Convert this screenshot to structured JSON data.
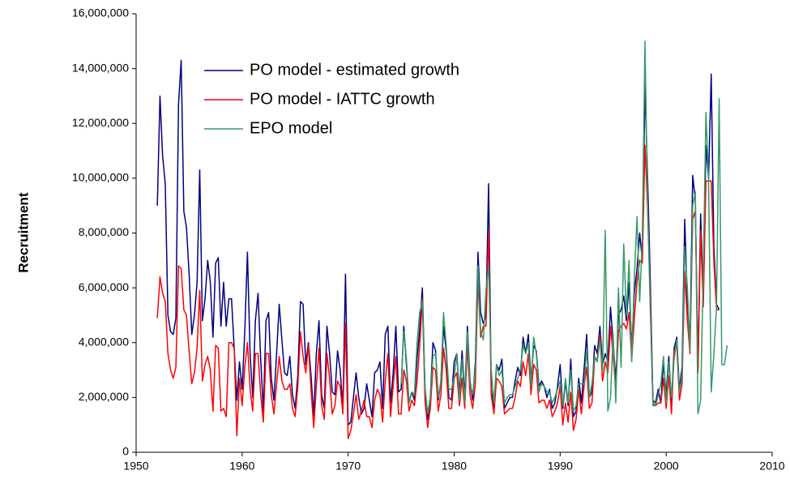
{
  "chart_data": {
    "type": "line",
    "y_label": "Recruitment",
    "legend": "upper left",
    "grid": false,
    "xlim": [
      1950,
      2010
    ],
    "xticks": [
      1950,
      1960,
      1970,
      1980,
      1990,
      2000,
      2010
    ],
    "ylim": [
      0,
      16000000
    ],
    "yticks": [
      0,
      {
        "value": 2000000,
        "label": "2,000,000"
      },
      {
        "value": 4000000,
        "label": "4,000,000"
      },
      {
        "value": 6000000,
        "label": "6,000,000"
      },
      {
        "value": 8000000,
        "label": "8,000,000"
      },
      {
        "value": 10000000,
        "label": "10,000,000"
      },
      {
        "value": 12000000,
        "label": "12,000,000"
      },
      {
        "value": 14000000,
        "label": "14,000,000"
      },
      {
        "value": 16000000,
        "label": "16,000,000"
      }
    ],
    "x": [
      1952,
      1952.25,
      1952.5,
      1952.75,
      1953,
      1953.25,
      1953.5,
      1953.75,
      1954,
      1954.25,
      1954.5,
      1954.75,
      1955,
      1955.25,
      1955.5,
      1955.75,
      1956,
      1956.25,
      1956.5,
      1956.75,
      1957,
      1957.25,
      1957.5,
      1957.75,
      1958,
      1958.25,
      1958.5,
      1958.75,
      1959,
      1959.25,
      1959.5,
      1959.75,
      1960,
      1960.25,
      1960.5,
      1960.75,
      1961,
      1961.25,
      1961.5,
      1961.75,
      1962,
      1962.25,
      1962.5,
      1962.75,
      1963,
      1963.25,
      1963.5,
      1963.75,
      1964,
      1964.25,
      1964.5,
      1964.75,
      1965,
      1965.25,
      1965.5,
      1965.75,
      1966,
      1966.25,
      1966.5,
      1966.75,
      1967,
      1967.25,
      1967.5,
      1967.75,
      1968,
      1968.25,
      1968.5,
      1968.75,
      1969,
      1969.25,
      1969.5,
      1969.75,
      1970,
      1970.25,
      1970.5,
      1970.75,
      1971,
      1971.25,
      1971.5,
      1971.75,
      1972,
      1972.25,
      1972.5,
      1972.75,
      1973,
      1973.25,
      1973.5,
      1973.75,
      1974,
      1974.25,
      1974.5,
      1974.75,
      1975,
      1975.25,
      1975.5,
      1975.75,
      1976,
      1976.25,
      1976.5,
      1976.75,
      1977,
      1977.25,
      1977.5,
      1977.75,
      1978,
      1978.25,
      1978.5,
      1978.75,
      1979,
      1979.25,
      1979.5,
      1979.75,
      1980,
      1980.25,
      1980.5,
      1980.75,
      1981,
      1981.25,
      1981.5,
      1981.75,
      1982,
      1982.25,
      1982.5,
      1982.75,
      1983,
      1983.25,
      1983.5,
      1983.75,
      1984,
      1984.25,
      1984.5,
      1984.75,
      1985,
      1985.25,
      1985.5,
      1985.75,
      1986,
      1986.25,
      1986.5,
      1986.75,
      1987,
      1987.25,
      1987.5,
      1987.75,
      1988,
      1988.25,
      1988.5,
      1988.75,
      1989,
      1989.25,
      1989.5,
      1989.75,
      1990,
      1990.25,
      1990.5,
      1990.75,
      1991,
      1991.25,
      1991.5,
      1991.75,
      1992,
      1992.25,
      1992.5,
      1992.75,
      1993,
      1993.25,
      1993.5,
      1993.75,
      1994,
      1994.25,
      1994.5,
      1994.75,
      1995,
      1995.25,
      1995.5,
      1995.75,
      1996,
      1996.25,
      1996.5,
      1996.75,
      1997,
      1997.25,
      1997.5,
      1997.75,
      1998,
      1998.25,
      1998.5,
      1998.75,
      1999,
      1999.25,
      1999.5,
      1999.75,
      2000,
      2000.25,
      2000.5,
      2000.75,
      2001,
      2001.25,
      2001.5,
      2001.75,
      2002,
      2002.25,
      2002.5,
      2002.75,
      2003,
      2003.25,
      2003.5,
      2003.75,
      2004,
      2004.25,
      2004.5,
      2004.75,
      2005,
      2005.25,
      2005.5,
      2005.75
    ],
    "series": [
      {
        "name": "PO model - estimated growth",
        "color": "#000080",
        "values": [
          9000000.0,
          13000000.0,
          10800000.0,
          9800000.0,
          5000000.0,
          4400000.0,
          4300000.0,
          4900000.0,
          12700000.0,
          14300000.0,
          8800000.0,
          8200000.0,
          6500000.0,
          4300000.0,
          5000000.0,
          6200000.0,
          10300000.0,
          4800000.0,
          5600000.0,
          7000000.0,
          6200000.0,
          4200000.0,
          6900000.0,
          7100000.0,
          4600000.0,
          6200000.0,
          4600000.0,
          5600000.0,
          5600000.0,
          3800000.0,
          1900000.0,
          3300000.0,
          2300000.0,
          4400000.0,
          7300000.0,
          3600000.0,
          2000000.0,
          4800000.0,
          5800000.0,
          3400000.0,
          1500000.0,
          4800000.0,
          5100000.0,
          2700000.0,
          1900000.0,
          3600000.0,
          5400000.0,
          4100000.0,
          2900000.0,
          2800000.0,
          3500000.0,
          2100000.0,
          1600000.0,
          2800000.0,
          5500000.0,
          5400000.0,
          3200000.0,
          4000000.0,
          2800000.0,
          1300000.0,
          3600000.0,
          4800000.0,
          2100000.0,
          1600000.0,
          4600000.0,
          3600000.0,
          2200000.0,
          2100000.0,
          3700000.0,
          3000000.0,
          1600000.0,
          6500000.0,
          1000000.0,
          1100000.0,
          2000000.0,
          2900000.0,
          2000000.0,
          1400000.0,
          1600000.0,
          2500000.0,
          1900000.0,
          1300000.0,
          2900000.0,
          3000000.0,
          3300000.0,
          1600000.0,
          4300000.0,
          4600000.0,
          1800000.0,
          2900000.0,
          4600000.0,
          2200000.0,
          2300000.0,
          4600000.0,
          3200000.0,
          1800000.0,
          2200000.0,
          1900000.0,
          3400000.0,
          4500000.0,
          6000000.0,
          2300000.0,
          1200000.0,
          2000000.0,
          4000000.0,
          3700000.0,
          1900000.0,
          2600000.0,
          4600000.0,
          3700000.0,
          2000000.0,
          1900000.0,
          3300000.0,
          3600000.0,
          2100000.0,
          3700000.0,
          2000000.0,
          4600000.0,
          2600000.0,
          1900000.0,
          3300000.0,
          7300000.0,
          5100000.0,
          4700000.0,
          5000000.0,
          9800000.0,
          2300000.0,
          1500000.0,
          3200000.0,
          3000000.0,
          3400000.0,
          1600000.0,
          1800000.0,
          2000000.0,
          2000000.0,
          2600000.0,
          3100000.0,
          2800000.0,
          4200000.0,
          3600000.0,
          4300000.0,
          2600000.0,
          3900000.0,
          3700000.0,
          2400000.0,
          2600000.0,
          2400000.0,
          2000000.0,
          2300000.0,
          1600000.0,
          1800000.0,
          2400000.0,
          3200000.0,
          1600000.0,
          2600000.0,
          1700000.0,
          3400000.0,
          1300000.0,
          1500000.0,
          2700000.0,
          1800000.0,
          3000000.0,
          4300000.0,
          2000000.0,
          2200000.0,
          3900000.0,
          3600000.0,
          4600000.0,
          3200000.0,
          3600000.0,
          3300000.0,
          5300000.0,
          4000000.0,
          2600000.0,
          5000000.0,
          5200000.0,
          5700000.0,
          4800000.0,
          6200000.0,
          3800000.0,
          5800000.0,
          6700000.0,
          8000000.0,
          7000000.0,
          13400000.0,
          10000000.0,
          6300000.0,
          1900000.0,
          1800000.0,
          2300000.0,
          1800000.0,
          3300000.0,
          2100000.0,
          3500000.0,
          1800000.0,
          3800000.0,
          4200000.0,
          2300000.0,
          3100000.0,
          8500000.0,
          5500000.0,
          4000000.0,
          10100000.0,
          9200000.0,
          3000000.0,
          8700000.0,
          5600000.0,
          11200000.0,
          10000000.0,
          13800000.0,
          7500000.0,
          5400000.0,
          5200000.0,
          null,
          null,
          null
        ]
      },
      {
        "name": "PO model - IATTC growth",
        "color": "#ff0000",
        "values": [
          4900000.0,
          6400000.0,
          5800000.0,
          5500000.0,
          3600000.0,
          3000000.0,
          2700000.0,
          3100000.0,
          6800000.0,
          6700000.0,
          5200000.0,
          5000000.0,
          3700000.0,
          2500000.0,
          2900000.0,
          3800000.0,
          5900000.0,
          2600000.0,
          3200000.0,
          3500000.0,
          3000000.0,
          1500000.0,
          3900000.0,
          3800000.0,
          1500000.0,
          1600000.0,
          1300000.0,
          4000000.0,
          4000000.0,
          3800000.0,
          600000.0,
          2700000.0,
          1700000.0,
          3100000.0,
          4000000.0,
          2300000.0,
          1500000.0,
          3600000.0,
          3600000.0,
          2100000.0,
          1100000.0,
          3600000.0,
          3600000.0,
          2100000.0,
          1400000.0,
          2500000.0,
          3500000.0,
          2600000.0,
          2300000.0,
          2300000.0,
          2500000.0,
          1600000.0,
          1300000.0,
          2400000.0,
          4400000.0,
          3500000.0,
          2900000.0,
          3900000.0,
          2300000.0,
          900000.0,
          2400000.0,
          3800000.0,
          1700000.0,
          1200000.0,
          3600000.0,
          2700000.0,
          1400000.0,
          1700000.0,
          2600000.0,
          2400000.0,
          1400000.0,
          4700000.0,
          500000.0,
          800000.0,
          1400000.0,
          2100000.0,
          1200000.0,
          1500000.0,
          1900000.0,
          1300000.0,
          1300000.0,
          900000.0,
          1900000.0,
          2300000.0,
          2100000.0,
          1100000.0,
          2600000.0,
          3600000.0,
          1300000.0,
          2400000.0,
          3500000.0,
          1400000.0,
          1400000.0,
          3000000.0,
          2600000.0,
          1500000.0,
          1900000.0,
          1700000.0,
          2600000.0,
          3900000.0,
          5600000.0,
          1900000.0,
          900000.0,
          1600000.0,
          3100000.0,
          3000000.0,
          1500000.0,
          2100000.0,
          3800000.0,
          3000000.0,
          1600000.0,
          1600000.0,
          2700000.0,
          2900000.0,
          1700000.0,
          2700000.0,
          1600000.0,
          3900000.0,
          2100000.0,
          1600000.0,
          2500000.0,
          6300000.0,
          4200000.0,
          4600000.0,
          4600000.0,
          8100000.0,
          2100000.0,
          1400000.0,
          2700000.0,
          2600000.0,
          2400000.0,
          1400000.0,
          1500000.0,
          1600000.0,
          1600000.0,
          2000000.0,
          2600000.0,
          2400000.0,
          3300000.0,
          2800000.0,
          3600000.0,
          2100000.0,
          3200000.0,
          3000000.0,
          1800000.0,
          1900000.0,
          1900000.0,
          1600000.0,
          1900000.0,
          1300000.0,
          1500000.0,
          1800000.0,
          2400000.0,
          1000000.0,
          1800000.0,
          1100000.0,
          2200000.0,
          800000.0,
          1200000.0,
          2300000.0,
          1400000.0,
          2400000.0,
          3100000.0,
          1600000.0,
          1800000.0,
          3400000.0,
          3400000.0,
          4300000.0,
          2600000.0,
          3300000.0,
          2900000.0,
          4600000.0,
          3500000.0,
          2300000.0,
          4400000.0,
          4600000.0,
          4700000.0,
          4500000.0,
          5100000.0,
          3400000.0,
          4900000.0,
          6200000.0,
          7000000.0,
          6900000.0,
          11200000.0,
          8900000.0,
          5700000.0,
          1800000.0,
          1700000.0,
          1800000.0,
          1800000.0,
          2700000.0,
          1600000.0,
          2800000.0,
          1400000.0,
          3700000.0,
          3900000.0,
          1900000.0,
          2500000.0,
          6600000.0,
          4800000.0,
          3600000.0,
          8500000.0,
          8800000.0,
          2900000.0,
          8100000.0,
          5300000.0,
          9900000.0,
          9900000.0,
          9900000.0,
          7000000.0,
          5200000.0,
          5200000.0,
          null,
          null,
          null
        ]
      },
      {
        "name": "EPO model",
        "color": "#339966",
        "values": [
          null,
          null,
          null,
          null,
          null,
          null,
          null,
          null,
          null,
          null,
          null,
          null,
          null,
          null,
          null,
          null,
          null,
          null,
          null,
          null,
          null,
          null,
          null,
          null,
          null,
          null,
          null,
          null,
          null,
          null,
          null,
          null,
          null,
          null,
          null,
          null,
          null,
          null,
          null,
          null,
          null,
          null,
          null,
          null,
          null,
          null,
          null,
          null,
          null,
          null,
          null,
          null,
          null,
          null,
          null,
          null,
          null,
          null,
          null,
          null,
          null,
          null,
          null,
          null,
          null,
          null,
          null,
          null,
          null,
          null,
          null,
          null,
          null,
          null,
          null,
          null,
          null,
          null,
          null,
          null,
          null,
          null,
          null,
          null,
          null,
          null,
          null,
          null,
          null,
          null,
          null,
          null,
          2500000.0,
          4400000.0,
          3400000.0,
          1800000.0,
          2200000.0,
          2100000.0,
          4000000.0,
          5100000.0,
          5500000.0,
          2400000.0,
          1400000.0,
          2000000.0,
          3500000.0,
          3600000.0,
          2000000.0,
          2600000.0,
          5100000.0,
          3900000.0,
          2300000.0,
          2300000.0,
          2700000.0,
          3600000.0,
          1900000.0,
          3400000.0,
          1800000.0,
          4400000.0,
          2500000.0,
          2100000.0,
          3000000.0,
          6800000.0,
          4400000.0,
          4100000.0,
          5900000.0,
          6800000.0,
          3000000.0,
          1800000.0,
          3200000.0,
          2800000.0,
          3000000.0,
          1800000.0,
          2000000.0,
          2100000.0,
          2100000.0,
          2400000.0,
          2700000.0,
          3000000.0,
          3900000.0,
          3600000.0,
          4000000.0,
          2400000.0,
          4200000.0,
          3600000.0,
          2200000.0,
          2500000.0,
          2400000.0,
          2200000.0,
          2200000.0,
          1800000.0,
          2000000.0,
          2300000.0,
          2600000.0,
          1700000.0,
          2700000.0,
          1800000.0,
          3000000.0,
          1500000.0,
          1700000.0,
          2500000.0,
          2500000.0,
          2500000.0,
          3800000.0,
          2000000.0,
          2500000.0,
          3500000.0,
          3300000.0,
          4100000.0,
          3000000.0,
          8100000.0,
          1500000.0,
          2000000.0,
          4300000.0,
          1800000.0,
          6000000.0,
          3100000.0,
          7600000.0,
          5000000.0,
          7000000.0,
          3300000.0,
          6400000.0,
          8600000.0,
          5500000.0,
          7800000.0,
          15000000.0,
          9000000.0,
          5200000.0,
          1700000.0,
          1700000.0,
          2100000.0,
          2500000.0,
          3500000.0,
          1800000.0,
          3300000.0,
          2000000.0,
          3400000.0,
          4100000.0,
          2200000.0,
          2800000.0,
          7500000.0,
          6000000.0,
          3700000.0,
          9000000.0,
          9500000.0,
          1400000.0,
          1900000.0,
          6600000.0,
          12400000.0,
          10000000.0,
          2200000.0,
          3600000.0,
          5300000.0,
          12900000.0,
          3200000.0,
          3200000.0,
          3900000.0
        ]
      }
    ]
  }
}
